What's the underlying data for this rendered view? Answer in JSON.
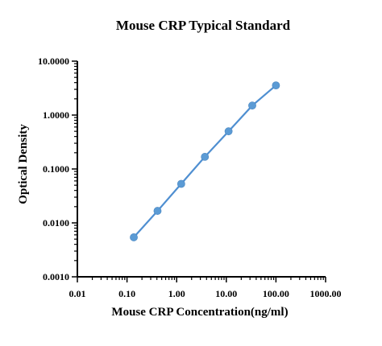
{
  "chart_data": {
    "type": "scatter",
    "title": "Mouse CRP Typical Standard",
    "xlabel": "Mouse CRP Concentration(ng/ml)",
    "ylabel": "Optical Density",
    "x_scale": "log",
    "y_scale": "log",
    "xlim": [
      0.01,
      1000
    ],
    "ylim": [
      0.001,
      10
    ],
    "x_ticks": [
      "0.01",
      "0.10",
      "1.00",
      "10.00",
      "100.00",
      "1000.00"
    ],
    "y_ticks": [
      "0.0010",
      "0.0100",
      "0.1000",
      "1.0000",
      "10.0000"
    ],
    "grid": false,
    "legend": "none",
    "colors": {
      "line": "#4f8fd1",
      "marker": "#5b9bd5"
    },
    "series": [
      {
        "x": [
          0.137,
          0.412,
          1.235,
          3.704,
          11.11,
          33.33,
          100
        ],
        "y": [
          0.0054,
          0.0167,
          0.053,
          0.168,
          0.5,
          1.5,
          3.55
        ]
      }
    ]
  }
}
